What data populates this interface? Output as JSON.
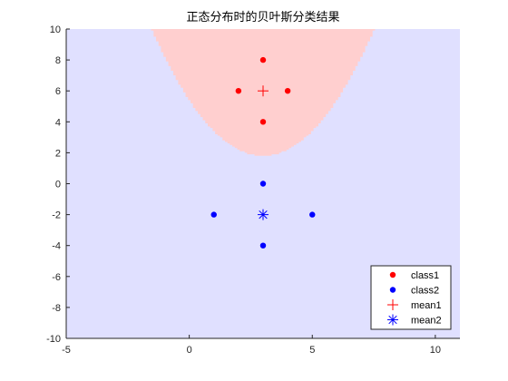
{
  "chart_data": {
    "type": "scatter",
    "title": "正态分布时的贝叶斯分类结果",
    "xlabel": "",
    "ylabel": "",
    "xlim": [
      -5,
      11
    ],
    "ylim": [
      -10,
      10
    ],
    "xticks": [
      -5,
      0,
      5,
      10
    ],
    "yticks": [
      -10,
      -8,
      -6,
      -4,
      -2,
      0,
      2,
      4,
      6,
      8,
      10
    ],
    "grid": false,
    "legend_position": "bottom-right",
    "background_color": "#e0e0ff",
    "region_class1": {
      "color": "#ffcfcf",
      "boundary": "parabola",
      "vertex": [
        3,
        1.75
      ],
      "curvature": 0.4
    },
    "series": [
      {
        "name": "class1",
        "marker": "dot",
        "color": "#ff0000",
        "x": [
          3,
          2,
          4,
          3
        ],
        "y": [
          8,
          6,
          6,
          4
        ]
      },
      {
        "name": "class2",
        "marker": "dot",
        "color": "#0000ff",
        "x": [
          3,
          1,
          5,
          3
        ],
        "y": [
          0,
          -2,
          -2,
          -4
        ]
      },
      {
        "name": "mean1",
        "marker": "plus",
        "color": "#ff0000",
        "x": [
          3
        ],
        "y": [
          6
        ]
      },
      {
        "name": "mean2",
        "marker": "asterisk",
        "color": "#0000ff",
        "x": [
          3
        ],
        "y": [
          -2
        ]
      }
    ]
  }
}
